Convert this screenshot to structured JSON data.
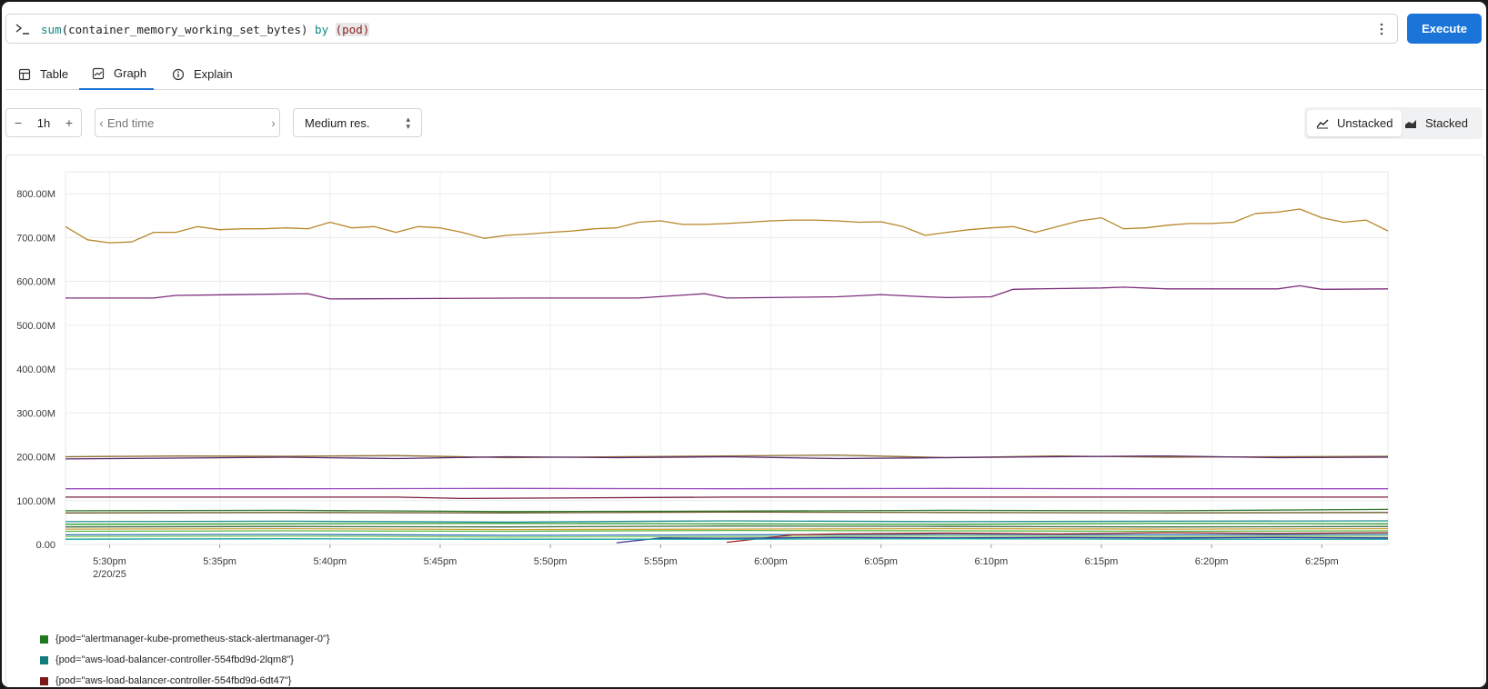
{
  "query": {
    "fn": "sum",
    "metric": "container_memory_working_set_bytes",
    "by_kw": "by",
    "label": "pod",
    "prompt_icon": "terminal-prompt-icon",
    "menu_icon": "kebab-menu-icon"
  },
  "execute_label": "Execute",
  "tabs": [
    {
      "label": "Table",
      "icon": "table-icon"
    },
    {
      "label": "Graph",
      "icon": "graph-icon"
    },
    {
      "label": "Explain",
      "icon": "info-icon"
    }
  ],
  "controls": {
    "range_value": "1h",
    "range_minus": "−",
    "range_plus": "+",
    "end_time_placeholder": "End time",
    "resolution": "Medium res."
  },
  "stack_toggle": {
    "unstacked_label": "Unstacked",
    "stacked_label": "Stacked",
    "selected": "Unstacked"
  },
  "chart_data": {
    "type": "line",
    "title": "",
    "xlabel": "",
    "ylabel": "",
    "ylim": [
      0,
      850
    ],
    "y_unit": "M",
    "y_ticks": [
      "0.00",
      "100.00M",
      "200.00M",
      "300.00M",
      "400.00M",
      "500.00M",
      "600.00M",
      "700.00M",
      "800.00M"
    ],
    "y_tick_values": [
      0,
      100,
      200,
      300,
      400,
      500,
      600,
      700,
      800
    ],
    "x_start": "5:28pm",
    "x_end": "6:28pm",
    "x_ticks": [
      "5:30pm",
      "5:35pm",
      "5:40pm",
      "5:45pm",
      "5:50pm",
      "5:55pm",
      "6:00pm",
      "6:05pm",
      "6:10pm",
      "6:15pm",
      "6:20pm",
      "6:25pm"
    ],
    "x_tick_minutes": [
      2,
      7,
      12,
      17,
      22,
      27,
      32,
      37,
      42,
      47,
      52,
      57
    ],
    "x_date_label": "2/20/25",
    "grid": true,
    "legend_position": "bottom-left",
    "series": [
      {
        "color": "#b8862b",
        "x": [
          0,
          1,
          2,
          3,
          4,
          5,
          6,
          7,
          8,
          9,
          10,
          11,
          12,
          13,
          14,
          15,
          16,
          17,
          18,
          19,
          20,
          21,
          22,
          23,
          24,
          25,
          26,
          27,
          28,
          29,
          30,
          31,
          32,
          33,
          34,
          35,
          36,
          37,
          38,
          39,
          40,
          41,
          42,
          43,
          44,
          45,
          46,
          47,
          48,
          49,
          50,
          51,
          52,
          53,
          54,
          55,
          56,
          57,
          58,
          59,
          60
        ],
        "values": [
          725,
          695,
          688,
          690,
          712,
          712,
          725,
          718,
          720,
          720,
          722,
          720,
          735,
          722,
          725,
          712,
          725,
          722,
          712,
          698,
          705,
          708,
          712,
          715,
          720,
          722,
          735,
          738,
          730,
          730,
          732,
          735,
          738,
          740,
          740,
          738,
          735,
          736,
          725,
          705,
          712,
          718,
          722,
          725,
          712,
          725,
          738,
          745,
          720,
          722,
          728,
          732,
          732,
          735,
          755,
          758,
          765,
          745,
          735,
          740,
          715
        ]
      },
      {
        "color": "#7b2d7b",
        "x": [
          0,
          4,
          5,
          11,
          12,
          21,
          26,
          29,
          30,
          35,
          37,
          39,
          40,
          42,
          43,
          44,
          47,
          48,
          50,
          55,
          56,
          57,
          60
        ],
        "values": [
          562,
          562,
          568,
          572,
          560,
          562,
          562,
          572,
          562,
          565,
          570,
          565,
          563,
          565,
          582,
          583,
          585,
          587,
          583,
          583,
          590,
          582,
          583
        ]
      },
      {
        "color": "#8b6b2a",
        "x": [
          0,
          5,
          10,
          15,
          20,
          25,
          30,
          35,
          40,
          45,
          50,
          55,
          60
        ],
        "values": [
          200,
          202,
          201,
          203,
          198,
          200,
          202,
          204,
          198,
          202,
          199,
          200,
          201
        ]
      },
      {
        "color": "#5a2a6e",
        "x": [
          0,
          5,
          10,
          15,
          20,
          25,
          30,
          35,
          40,
          45,
          50,
          55,
          60
        ],
        "values": [
          195,
          197,
          199,
          196,
          200,
          198,
          200,
          196,
          198,
          200,
          202,
          198,
          199
        ]
      },
      {
        "color": "#9a4bc0",
        "x": [
          0,
          10,
          20,
          30,
          40,
          50,
          60
        ],
        "values": [
          127,
          127,
          128,
          127,
          128,
          127,
          127
        ]
      },
      {
        "color": "#7a1f3a",
        "x": [
          0,
          15,
          18,
          30,
          40,
          50,
          60
        ],
        "values": [
          108,
          108,
          105,
          108,
          108,
          108,
          108
        ]
      },
      {
        "color": "#2f7a2f",
        "x": [
          0,
          10,
          20,
          30,
          40,
          50,
          60
        ],
        "values": [
          77,
          78,
          75,
          76,
          78,
          77,
          80
        ]
      },
      {
        "color": "#6a5a2a",
        "x": [
          0,
          10,
          20,
          30,
          40,
          50,
          60
        ],
        "values": [
          72,
          73,
          72,
          74,
          73,
          72,
          73
        ]
      },
      {
        "color": "#1f8f8f",
        "x": [
          0,
          10,
          20,
          30,
          40,
          50,
          60
        ],
        "values": [
          52,
          53,
          51,
          54,
          52,
          53,
          54
        ]
      },
      {
        "color": "#2e9b2e",
        "x": [
          0,
          10,
          20,
          30,
          40,
          50,
          60
        ],
        "values": [
          46,
          47,
          48,
          47,
          46,
          48,
          47
        ]
      },
      {
        "color": "#3d6b3d",
        "x": [
          0,
          10,
          20,
          30,
          40,
          50,
          60
        ],
        "values": [
          40,
          41,
          40,
          42,
          41,
          40,
          41
        ]
      },
      {
        "color": "#c9a23a",
        "x": [
          0,
          10,
          20,
          30,
          40,
          50,
          60
        ],
        "values": [
          35,
          36,
          34,
          35,
          36,
          35,
          36
        ]
      },
      {
        "color": "#5bb84a",
        "x": [
          0,
          10,
          20,
          30,
          40,
          50,
          60
        ],
        "values": [
          30,
          31,
          30,
          32,
          31,
          30,
          31
        ]
      },
      {
        "color": "#2a6fb0",
        "x": [
          0,
          10,
          20,
          30,
          40,
          50,
          60
        ],
        "values": [
          22,
          23,
          21,
          22,
          23,
          22,
          23
        ]
      },
      {
        "color": "#8bd06a",
        "x": [
          0,
          10,
          20,
          30,
          40,
          50,
          60
        ],
        "values": [
          18,
          19,
          17,
          18,
          19,
          18,
          19
        ]
      },
      {
        "color": "#a02020",
        "x": [
          30,
          33,
          35,
          40,
          45,
          50,
          55,
          60
        ],
        "values": [
          5,
          22,
          24,
          26,
          24,
          27,
          25,
          27
        ]
      },
      {
        "color": "#3a3aa0",
        "x": [
          25,
          27,
          30,
          35,
          40,
          45,
          50,
          55,
          60
        ],
        "values": [
          4,
          15,
          14,
          16,
          15,
          16,
          15,
          16,
          15
        ]
      },
      {
        "color": "#17a2a2",
        "x": [
          0,
          10,
          20,
          30,
          40,
          50,
          60
        ],
        "values": [
          12,
          13,
          12,
          12,
          13,
          12,
          12
        ]
      }
    ]
  },
  "legend": [
    {
      "label": "{pod=\"alertmanager-kube-prometheus-stack-alertmanager-0\"}",
      "color": "#1f7a1f"
    },
    {
      "label": "{pod=\"aws-load-balancer-controller-554fbd9d-2lqm8\"}",
      "color": "#137b7b"
    },
    {
      "label": "{pod=\"aws-load-balancer-controller-554fbd9d-6dt47\"}",
      "color": "#7a1a1a"
    }
  ]
}
